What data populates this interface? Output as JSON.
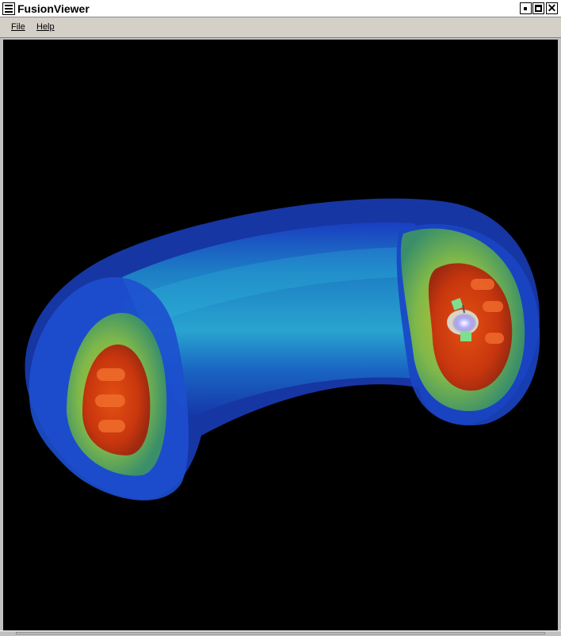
{
  "window": {
    "title": "FusionViewer",
    "app_icon": "window-menu-icon",
    "controls": {
      "minimize_icon": "minimize-icon",
      "maximize_icon": "maximize-icon",
      "close_icon": "close-icon",
      "close_glyph": "✕"
    }
  },
  "menubar": {
    "items": [
      {
        "label": "File"
      },
      {
        "label": "Help"
      }
    ]
  },
  "viewport": {
    "content": "3D isosurface rendering of a torus plasma volume",
    "colors": {
      "background": "#000000",
      "outer_shell": "#1e4fd0",
      "middle_shell": "#1c9fc8",
      "inner_shell": "#7fb84a",
      "core_shell": "#c3c22e",
      "hot_core": "#d4380f"
    }
  }
}
